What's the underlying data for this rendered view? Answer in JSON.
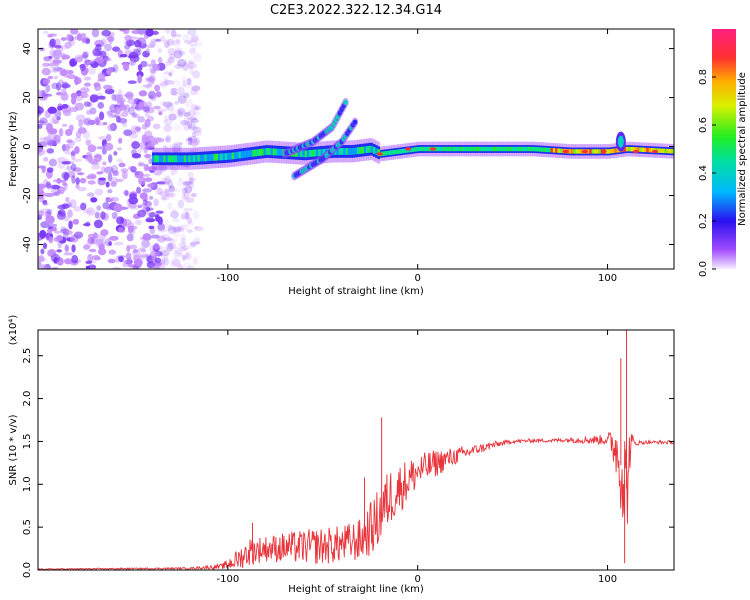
{
  "title": "C2E3.2022.322.12.34.G14",
  "chart_data": [
    {
      "type": "heatmap",
      "xlabel": "Height of straight line (km)",
      "ylabel": "Frequency (Hz)",
      "xlim": [
        -200,
        135
      ],
      "ylim": [
        -50,
        48
      ],
      "x_ticks": [
        -100,
        0,
        100
      ],
      "x_tick_labels": [
        "-100",
        "0",
        "100"
      ],
      "y_ticks": [
        -40,
        -20,
        0,
        20,
        40
      ],
      "y_tick_labels": [
        "-40",
        "-20",
        "0",
        "20",
        "40"
      ],
      "colorbar": {
        "label": "Normalized spectral amplitude",
        "range": [
          0,
          1
        ],
        "ticks": [
          0.0,
          0.2,
          0.4,
          0.6,
          0.8
        ],
        "tick_labels": [
          "0.0",
          "0.2",
          "0.4",
          "0.6",
          "0.8"
        ]
      },
      "features": [
        {
          "kind": "noise",
          "x_range": [
            -200,
            -115
          ],
          "y_range": [
            -50,
            48
          ],
          "amplitude": 0.05
        },
        {
          "kind": "band",
          "points": [
            [
              -140,
              -5
            ],
            [
              -120,
              -5
            ],
            [
              -100,
              -4
            ],
            [
              -80,
              -2
            ],
            [
              -60,
              -3
            ],
            [
              -45,
              -2
            ],
            [
              -35,
              -2
            ],
            [
              -25,
              -1
            ],
            [
              -20,
              -3
            ],
            [
              -10,
              -2
            ],
            [
              0,
              -1
            ],
            [
              20,
              -1
            ],
            [
              40,
              -1
            ],
            [
              60,
              -1
            ],
            [
              80,
              -2
            ],
            [
              100,
              -2
            ],
            [
              110,
              -1
            ],
            [
              135,
              -2
            ]
          ],
          "amplitude": 0.4
        },
        {
          "kind": "arc",
          "points": [
            [
              -70,
              -3
            ],
            [
              -55,
              2
            ],
            [
              -45,
              8
            ],
            [
              -38,
              18
            ]
          ],
          "amplitude": 0.3
        },
        {
          "kind": "arc",
          "points": [
            [
              -65,
              -12
            ],
            [
              -50,
              -5
            ],
            [
              -40,
              2
            ],
            [
              -33,
              10
            ]
          ],
          "amplitude": 0.35
        },
        {
          "kind": "peak",
          "x": 107,
          "y": 2,
          "amplitude": 0.4
        }
      ]
    },
    {
      "type": "line",
      "xlabel": "Height of straight line (km)",
      "ylabel": "SNR (10 * v/v)",
      "y_scale_label": "(x10⁴)",
      "xlim": [
        -200,
        135
      ],
      "ylim": [
        0,
        2.8
      ],
      "x_ticks": [
        -100,
        0,
        100
      ],
      "x_tick_labels": [
        "-100",
        "0",
        "100"
      ],
      "y_ticks": [
        0.0,
        0.5,
        1.0,
        1.5,
        2.0,
        2.5
      ],
      "y_tick_labels": [
        "0.0",
        "0.5",
        "1.0",
        "1.5",
        "2.0",
        "2.5"
      ],
      "series_color": "#e8343a",
      "envelope": {
        "x": [
          -200,
          -120,
          -103,
          -95,
          -88,
          -80,
          -70,
          -60,
          -50,
          -40,
          -30,
          -22,
          -15,
          -10,
          -5,
          0,
          10,
          20,
          30,
          40,
          50,
          60,
          70,
          80,
          90,
          100,
          104,
          108,
          110,
          112,
          115,
          120,
          135
        ],
        "mean": [
          0.01,
          0.02,
          0.04,
          0.12,
          0.22,
          0.25,
          0.26,
          0.27,
          0.28,
          0.3,
          0.35,
          0.55,
          0.85,
          0.95,
          1.05,
          1.15,
          1.25,
          1.33,
          1.4,
          1.46,
          1.5,
          1.51,
          1.51,
          1.52,
          1.52,
          1.52,
          1.45,
          1.15,
          0.95,
          1.45,
          1.48,
          1.49,
          1.49
        ],
        "noise": [
          0.005,
          0.01,
          0.03,
          0.12,
          0.17,
          0.15,
          0.18,
          0.2,
          0.22,
          0.22,
          0.25,
          0.35,
          0.35,
          0.3,
          0.25,
          0.2,
          0.16,
          0.1,
          0.06,
          0.04,
          0.02,
          0.02,
          0.02,
          0.03,
          0.05,
          0.06,
          0.3,
          0.6,
          0.7,
          0.2,
          0.03,
          0.02,
          0.02
        ]
      },
      "peaks": [
        [
          -87,
          0.55
        ],
        [
          -19,
          1.78
        ],
        [
          -28,
          1.08
        ],
        [
          107,
          2.47
        ],
        [
          110,
          2.8
        ],
        [
          109,
          0.08
        ]
      ]
    }
  ]
}
